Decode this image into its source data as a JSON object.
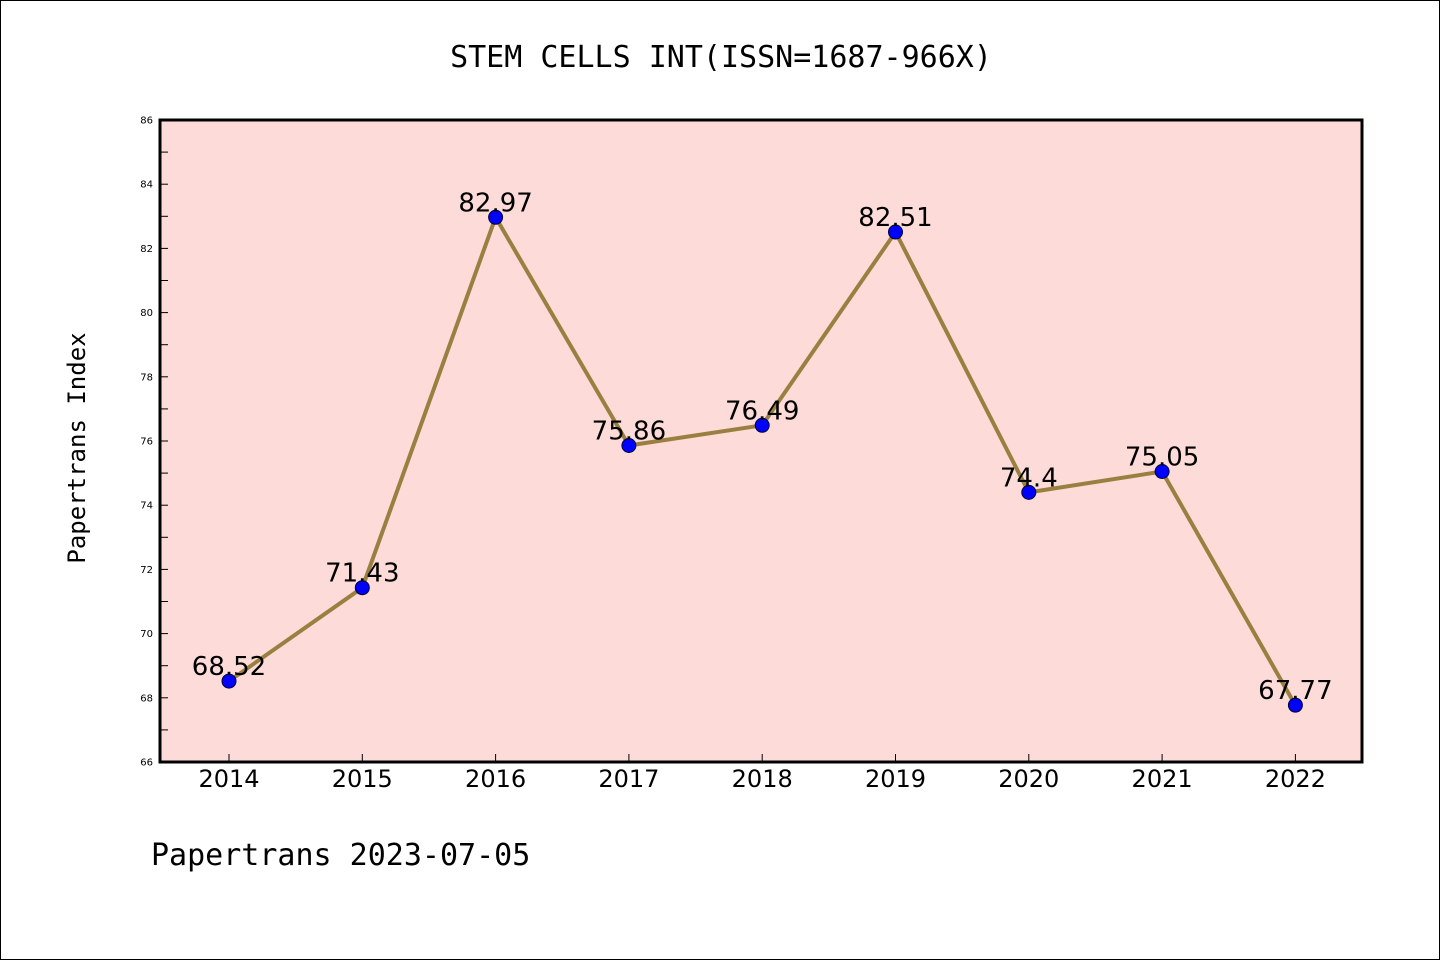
{
  "chart_data": {
    "type": "line",
    "title": "STEM CELLS INT(ISSN=1687-966X)",
    "xlabel": "",
    "ylabel": "Papertrans Index",
    "categories": [
      "2014",
      "2015",
      "2016",
      "2017",
      "2018",
      "2019",
      "2020",
      "2021",
      "2022"
    ],
    "values": [
      68.52,
      71.43,
      82.97,
      75.86,
      76.49,
      82.51,
      74.4,
      75.05,
      67.77
    ],
    "data_labels": [
      "68.52",
      "71.43",
      "82.97",
      "75.86",
      "76.49",
      "82.51",
      "74.4",
      "75.05",
      "67.77"
    ],
    "ylim": [
      66,
      86
    ],
    "yticks": [
      "66",
      "68",
      "70",
      "72",
      "74",
      "76",
      "78",
      "80",
      "82",
      "84",
      "86"
    ],
    "grid": false,
    "colors": {
      "plot_background": "#fddbd8",
      "line": "#9a8040",
      "marker": "#0000ff"
    }
  },
  "footer": "Papertrans 2023-07-05"
}
